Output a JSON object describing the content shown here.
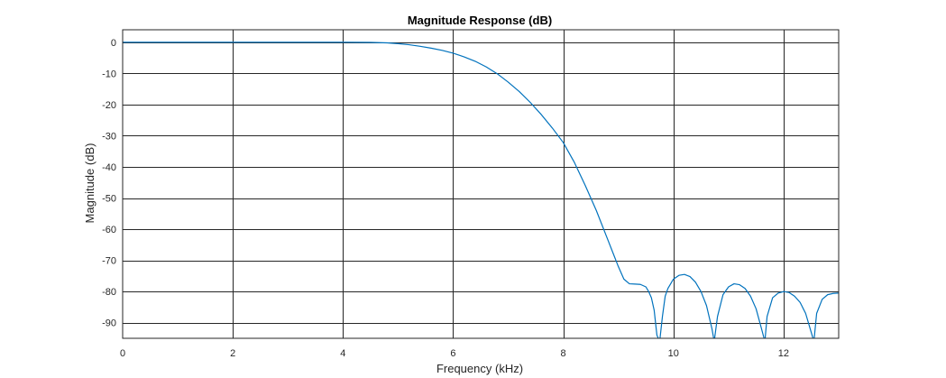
{
  "chart_data": {
    "type": "line",
    "title": "Magnitude Response (dB)",
    "xlabel": "Frequency (kHz)",
    "ylabel": "Magnitude (dB)",
    "xlim": [
      0,
      13
    ],
    "ylim": [
      -95,
      4
    ],
    "x_ticks": [
      0,
      2,
      4,
      6,
      8,
      10,
      12
    ],
    "y_ticks": [
      0,
      -10,
      -20,
      -30,
      -40,
      -50,
      -60,
      -70,
      -80,
      -90
    ],
    "grid": true,
    "colors": {
      "line": "#0072BD",
      "grid": "#262626",
      "axis": "#262626"
    },
    "series": [
      {
        "x": [
          0,
          1,
          2,
          3,
          4,
          4.5,
          4.8,
          5.0,
          5.2,
          5.4,
          5.6,
          5.8,
          6.0,
          6.2,
          6.4,
          6.6,
          6.8,
          7.0,
          7.2,
          7.4,
          7.6,
          7.8,
          8.0,
          8.2,
          8.4,
          8.6,
          8.8,
          8.9,
          9.0,
          9.1,
          9.2,
          9.3,
          9.4,
          9.5,
          9.55,
          9.6,
          9.65,
          9.7,
          9.75,
          9.8,
          9.85,
          9.9,
          10.0,
          10.1,
          10.2,
          10.3,
          10.4,
          10.5,
          10.6,
          10.7,
          10.74,
          10.8,
          10.9,
          11.0,
          11.1,
          11.2,
          11.3,
          11.4,
          11.5,
          11.6,
          11.66,
          11.7,
          11.8,
          11.9,
          12.0,
          12.1,
          12.2,
          12.3,
          12.4,
          12.5,
          12.55,
          12.6,
          12.7,
          12.8,
          12.9,
          13.0
        ],
        "y": [
          0,
          0,
          0,
          0,
          0,
          -0.05,
          -0.2,
          -0.45,
          -0.8,
          -1.3,
          -1.9,
          -2.6,
          -3.5,
          -4.7,
          -6.1,
          -7.9,
          -10.1,
          -12.8,
          -15.8,
          -19.3,
          -23.2,
          -27.5,
          -32.2,
          -38.5,
          -46.0,
          -54.0,
          -63.0,
          -67.5,
          -72.0,
          -76.0,
          -77.5,
          -77.6,
          -77.7,
          -78.5,
          -80.0,
          -82.0,
          -86.0,
          -94.0,
          -96.0,
          -88.0,
          -81.5,
          -79.0,
          -76.0,
          -74.8,
          -74.5,
          -75.2,
          -77.0,
          -80.0,
          -84.5,
          -92.0,
          -96.0,
          -88.0,
          -81.0,
          -78.5,
          -77.5,
          -77.8,
          -79.0,
          -81.5,
          -85.5,
          -92.0,
          -96.0,
          -88.0,
          -82.0,
          -80.5,
          -80.0,
          -80.3,
          -81.5,
          -83.5,
          -87.0,
          -93.0,
          -96.0,
          -87.0,
          -82.5,
          -81.0,
          -80.6,
          -80.5
        ]
      }
    ]
  }
}
